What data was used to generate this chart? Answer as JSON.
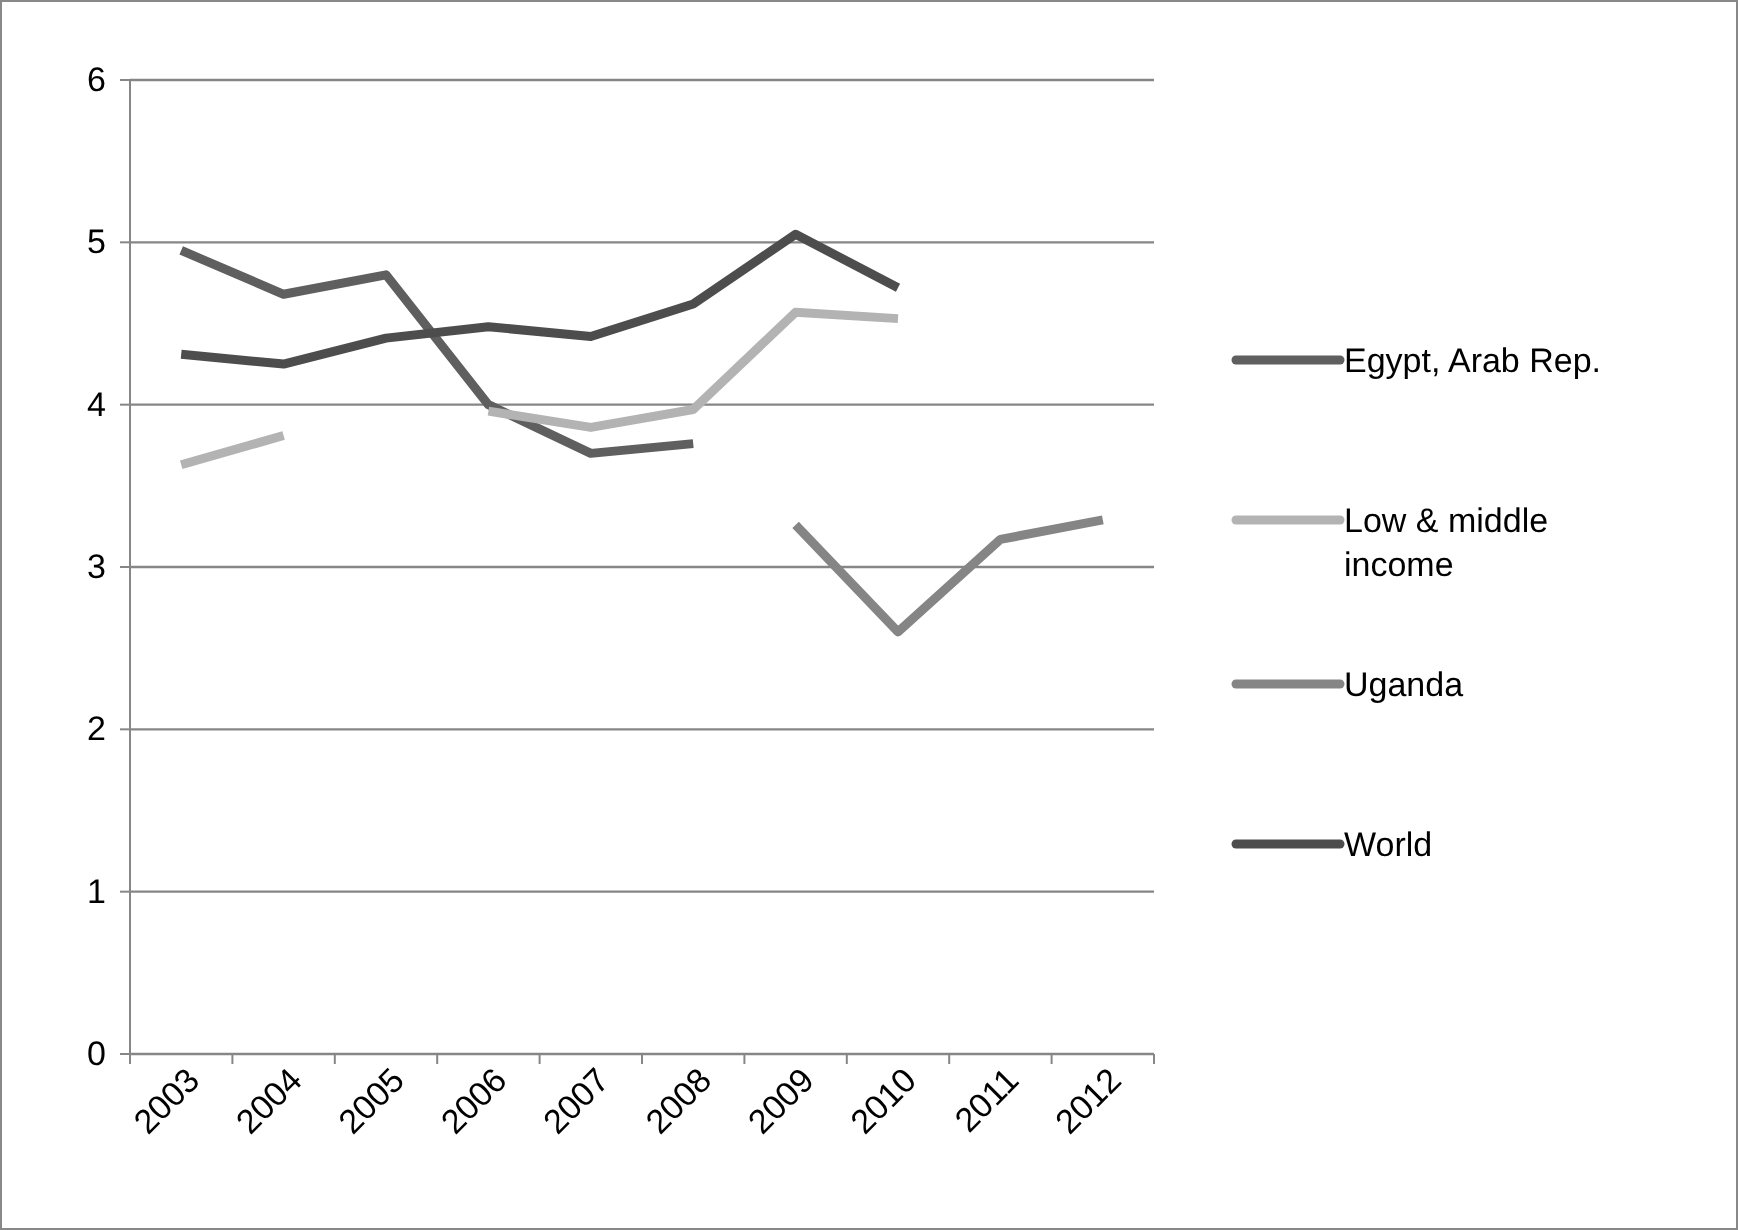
{
  "chart_data": {
    "type": "line",
    "categories": [
      "2003",
      "2004",
      "2005",
      "2006",
      "2007",
      "2008",
      "2009",
      "2010",
      "2011",
      "2012"
    ],
    "series": [
      {
        "name": "Egypt, Arab Rep.",
        "color": "#5f5f5f",
        "values": [
          4.95,
          4.68,
          4.8,
          4.0,
          3.7,
          3.76,
          null,
          null,
          null,
          null
        ]
      },
      {
        "name": "Low & middle income",
        "color": "#b3b3b3",
        "values": [
          3.63,
          3.81,
          null,
          3.96,
          3.86,
          3.97,
          4.57,
          4.53,
          null,
          null
        ]
      },
      {
        "name": "Uganda",
        "color": "#858585",
        "values": [
          null,
          null,
          null,
          null,
          null,
          null,
          3.26,
          2.6,
          3.17,
          3.29
        ]
      },
      {
        "name": "World",
        "color": "#4d4d4d",
        "values": [
          4.31,
          4.25,
          4.41,
          4.48,
          4.42,
          4.62,
          5.05,
          4.72,
          null,
          null
        ]
      }
    ],
    "ylim": [
      0,
      6
    ],
    "yticks": [
      0,
      1,
      2,
      3,
      4,
      5,
      6
    ],
    "grid": "y",
    "legend": "right",
    "marker": "none",
    "line_style": "solid"
  }
}
